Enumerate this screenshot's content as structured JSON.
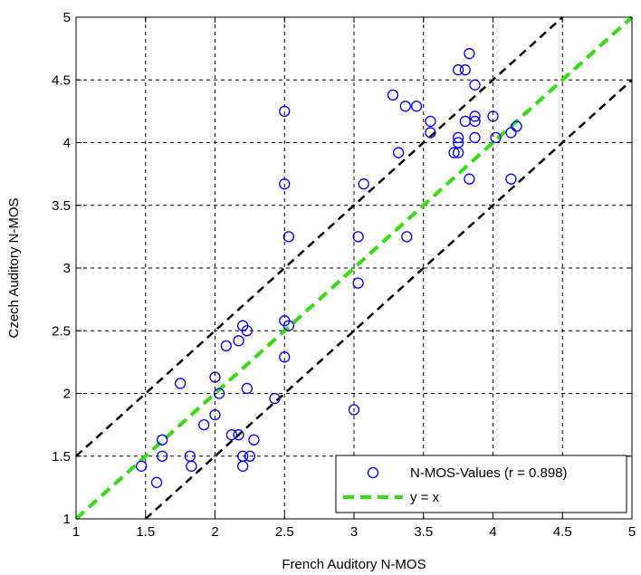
{
  "chart_data": {
    "type": "scatter",
    "title": "",
    "xlabel": "French Auditory N-MOS",
    "ylabel": "Czech Auditory N-MOS",
    "xlim": [
      1,
      5
    ],
    "ylim": [
      1,
      5
    ],
    "xticks": [
      "1",
      "1.5",
      "2",
      "2.5",
      "3",
      "3.5",
      "4",
      "4.5",
      "5"
    ],
    "yticks": [
      "1",
      "1.5",
      "2",
      "2.5",
      "3",
      "3.5",
      "4",
      "4.5",
      "5"
    ],
    "grid": true,
    "legend_position": "bottom-right",
    "series": [
      {
        "name": "N-MOS-Values (r = 0.898)",
        "kind": "scatter",
        "marker": "open-circle",
        "color": "#0000ff",
        "points": [
          [
            1.47,
            1.42
          ],
          [
            1.58,
            1.29
          ],
          [
            1.62,
            1.63
          ],
          [
            1.62,
            1.5
          ],
          [
            1.75,
            2.08
          ],
          [
            1.82,
            1.5
          ],
          [
            1.83,
            1.42
          ],
          [
            1.92,
            1.75
          ],
          [
            2.0,
            2.13
          ],
          [
            2.0,
            1.83
          ],
          [
            2.03,
            2.0
          ],
          [
            2.08,
            2.38
          ],
          [
            2.12,
            1.67
          ],
          [
            2.17,
            2.42
          ],
          [
            2.17,
            1.67
          ],
          [
            2.2,
            2.54
          ],
          [
            2.2,
            1.5
          ],
          [
            2.2,
            1.42
          ],
          [
            2.23,
            2.5
          ],
          [
            2.23,
            2.04
          ],
          [
            2.25,
            1.5
          ],
          [
            2.28,
            1.63
          ],
          [
            2.43,
            1.96
          ],
          [
            2.5,
            4.25
          ],
          [
            2.5,
            3.67
          ],
          [
            2.5,
            2.58
          ],
          [
            2.5,
            2.29
          ],
          [
            2.53,
            3.25
          ],
          [
            2.53,
            2.54
          ],
          [
            3.0,
            1.87
          ],
          [
            3.03,
            3.25
          ],
          [
            3.03,
            2.88
          ],
          [
            3.07,
            3.67
          ],
          [
            3.28,
            4.38
          ],
          [
            3.32,
            3.92
          ],
          [
            3.37,
            4.29
          ],
          [
            3.38,
            3.25
          ],
          [
            3.45,
            4.29
          ],
          [
            3.55,
            4.17
          ],
          [
            3.55,
            4.08
          ],
          [
            3.72,
            3.92
          ],
          [
            3.75,
            4.58
          ],
          [
            3.75,
            4.04
          ],
          [
            3.75,
            4.0
          ],
          [
            3.75,
            3.92
          ],
          [
            3.8,
            4.58
          ],
          [
            3.8,
            4.17
          ],
          [
            3.83,
            4.71
          ],
          [
            3.83,
            3.71
          ],
          [
            3.87,
            4.46
          ],
          [
            3.87,
            4.21
          ],
          [
            3.87,
            4.17
          ],
          [
            3.87,
            4.04
          ],
          [
            4.0,
            4.21
          ],
          [
            4.02,
            4.04
          ],
          [
            4.13,
            4.08
          ],
          [
            4.13,
            3.71
          ],
          [
            4.17,
            4.13
          ]
        ]
      },
      {
        "name": "y = x",
        "kind": "line",
        "color": "#33dd11",
        "dash": "dashed",
        "x": [
          1,
          5
        ],
        "y": [
          1,
          5
        ]
      },
      {
        "kind": "line",
        "color": "#000000",
        "dash": "dashed",
        "x": [
          1,
          4.5
        ],
        "y": [
          1.5,
          5
        ]
      },
      {
        "kind": "line",
        "color": "#000000",
        "dash": "dashed",
        "x": [
          1.5,
          5
        ],
        "y": [
          1,
          4.5
        ]
      }
    ]
  }
}
